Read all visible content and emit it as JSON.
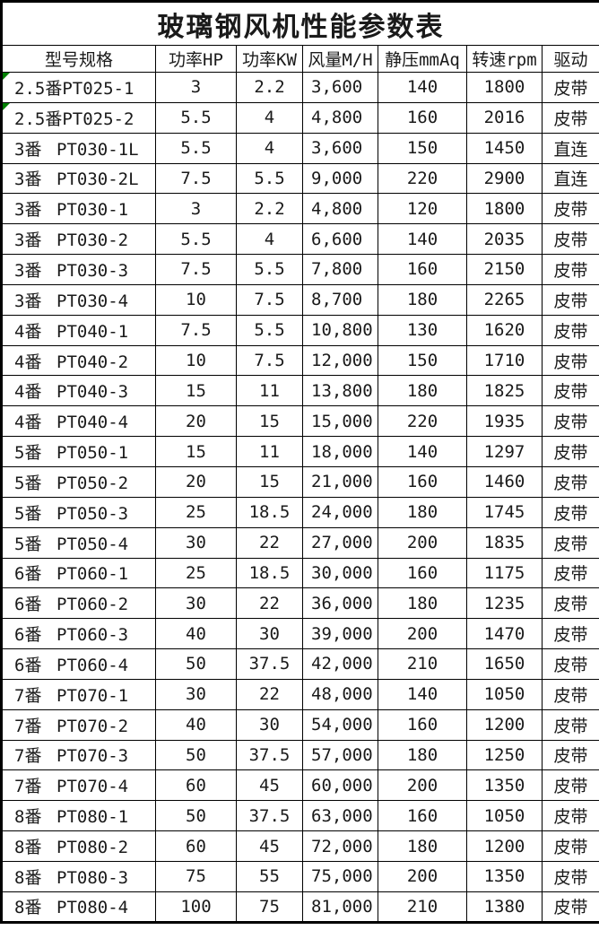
{
  "title": "玻璃钢风机性能参数表",
  "colors": {
    "background": "#ffffff",
    "border": "#000000",
    "text": "#1a1a1a",
    "error_flag_triangle": "#008000"
  },
  "icons": {
    "error_flag": "green-corner-triangle-number-stored-as-text"
  },
  "table": {
    "columns": [
      "型号规格",
      "功率HP",
      "功率KW",
      "风量M/H",
      "静压mmAq",
      "转速rpm",
      "驱动"
    ],
    "rows": [
      {
        "size": "2.5番",
        "model": "PT025-1",
        "hp": "3",
        "kw": "2.2",
        "flow": "3,600",
        "pressure": "140",
        "rpm": "1800",
        "drive": "皮带",
        "flag": true
      },
      {
        "size": "2.5番",
        "model": "PT025-2",
        "hp": "5.5",
        "kw": "4",
        "flow": "4,800",
        "pressure": "160",
        "rpm": "2016",
        "drive": "皮带",
        "flag": true
      },
      {
        "size": "3番",
        "model": "PT030-1L",
        "hp": "5.5",
        "kw": "4",
        "flow": "3,600",
        "pressure": "150",
        "rpm": "1450",
        "drive": "直连",
        "flag": false
      },
      {
        "size": "3番",
        "model": "PT030-2L",
        "hp": "7.5",
        "kw": "5.5",
        "flow": "9,000",
        "pressure": "220",
        "rpm": "2900",
        "drive": "直连",
        "flag": false
      },
      {
        "size": "3番",
        "model": "PT030-1",
        "hp": "3",
        "kw": "2.2",
        "flow": "4,800",
        "pressure": "120",
        "rpm": "1800",
        "drive": "皮带",
        "flag": false
      },
      {
        "size": "3番",
        "model": "PT030-2",
        "hp": "5.5",
        "kw": "4",
        "flow": "6,600",
        "pressure": "140",
        "rpm": "2035",
        "drive": "皮带",
        "flag": false
      },
      {
        "size": "3番",
        "model": "PT030-3",
        "hp": "7.5",
        "kw": "5.5",
        "flow": "7,800",
        "pressure": "160",
        "rpm": "2150",
        "drive": "皮带",
        "flag": false
      },
      {
        "size": "3番",
        "model": "PT030-4",
        "hp": "10",
        "kw": "7.5",
        "flow": "8,700",
        "pressure": "180",
        "rpm": "2265",
        "drive": "皮带",
        "flag": false
      },
      {
        "size": "4番",
        "model": "PT040-1",
        "hp": "7.5",
        "kw": "5.5",
        "flow": "10,800",
        "pressure": "130",
        "rpm": "1620",
        "drive": "皮带",
        "flag": false
      },
      {
        "size": "4番",
        "model": "PT040-2",
        "hp": "10",
        "kw": "7.5",
        "flow": "12,000",
        "pressure": "150",
        "rpm": "1710",
        "drive": "皮带",
        "flag": false
      },
      {
        "size": "4番",
        "model": "PT040-3",
        "hp": "15",
        "kw": "11",
        "flow": "13,800",
        "pressure": "180",
        "rpm": "1825",
        "drive": "皮带",
        "flag": false
      },
      {
        "size": "4番",
        "model": "PT040-4",
        "hp": "20",
        "kw": "15",
        "flow": "15,000",
        "pressure": "220",
        "rpm": "1935",
        "drive": "皮带",
        "flag": false
      },
      {
        "size": "5番",
        "model": "PT050-1",
        "hp": "15",
        "kw": "11",
        "flow": "18,000",
        "pressure": "140",
        "rpm": "1297",
        "drive": "皮带",
        "flag": false
      },
      {
        "size": "5番",
        "model": "PT050-2",
        "hp": "20",
        "kw": "15",
        "flow": "21,000",
        "pressure": "160",
        "rpm": "1460",
        "drive": "皮带",
        "flag": false
      },
      {
        "size": "5番",
        "model": "PT050-3",
        "hp": "25",
        "kw": "18.5",
        "flow": "24,000",
        "pressure": "180",
        "rpm": "1745",
        "drive": "皮带",
        "flag": false
      },
      {
        "size": "5番",
        "model": "PT050-4",
        "hp": "30",
        "kw": "22",
        "flow": "27,000",
        "pressure": "200",
        "rpm": "1835",
        "drive": "皮带",
        "flag": false
      },
      {
        "size": "6番",
        "model": "PT060-1",
        "hp": "25",
        "kw": "18.5",
        "flow": "30,000",
        "pressure": "160",
        "rpm": "1175",
        "drive": "皮带",
        "flag": false
      },
      {
        "size": "6番",
        "model": "PT060-2",
        "hp": "30",
        "kw": "22",
        "flow": "36,000",
        "pressure": "180",
        "rpm": "1235",
        "drive": "皮带",
        "flag": false
      },
      {
        "size": "6番",
        "model": "PT060-3",
        "hp": "40",
        "kw": "30",
        "flow": "39,000",
        "pressure": "200",
        "rpm": "1470",
        "drive": "皮带",
        "flag": false
      },
      {
        "size": "6番",
        "model": "PT060-4",
        "hp": "50",
        "kw": "37.5",
        "flow": "42,000",
        "pressure": "210",
        "rpm": "1650",
        "drive": "皮带",
        "flag": false
      },
      {
        "size": "7番",
        "model": "PT070-1",
        "hp": "30",
        "kw": "22",
        "flow": "48,000",
        "pressure": "140",
        "rpm": "1050",
        "drive": "皮带",
        "flag": false
      },
      {
        "size": "7番",
        "model": "PT070-2",
        "hp": "40",
        "kw": "30",
        "flow": "54,000",
        "pressure": "160",
        "rpm": "1200",
        "drive": "皮带",
        "flag": false
      },
      {
        "size": "7番",
        "model": "PT070-3",
        "hp": "50",
        "kw": "37.5",
        "flow": "57,000",
        "pressure": "180",
        "rpm": "1250",
        "drive": "皮带",
        "flag": false
      },
      {
        "size": "7番",
        "model": "PT070-4",
        "hp": "60",
        "kw": "45",
        "flow": "60,000",
        "pressure": "200",
        "rpm": "1350",
        "drive": "皮带",
        "flag": false
      },
      {
        "size": "8番",
        "model": "PT080-1",
        "hp": "50",
        "kw": "37.5",
        "flow": "63,000",
        "pressure": "160",
        "rpm": "1050",
        "drive": "皮带",
        "flag": false
      },
      {
        "size": "8番",
        "model": "PT080-2",
        "hp": "60",
        "kw": "45",
        "flow": "72,000",
        "pressure": "180",
        "rpm": "1200",
        "drive": "皮带",
        "flag": false
      },
      {
        "size": "8番",
        "model": "PT080-3",
        "hp": "75",
        "kw": "55",
        "flow": "75,000",
        "pressure": "200",
        "rpm": "1350",
        "drive": "皮带",
        "flag": false
      },
      {
        "size": "8番",
        "model": "PT080-4",
        "hp": "100",
        "kw": "75",
        "flow": "81,000",
        "pressure": "210",
        "rpm": "1380",
        "drive": "皮带",
        "flag": false
      }
    ]
  }
}
